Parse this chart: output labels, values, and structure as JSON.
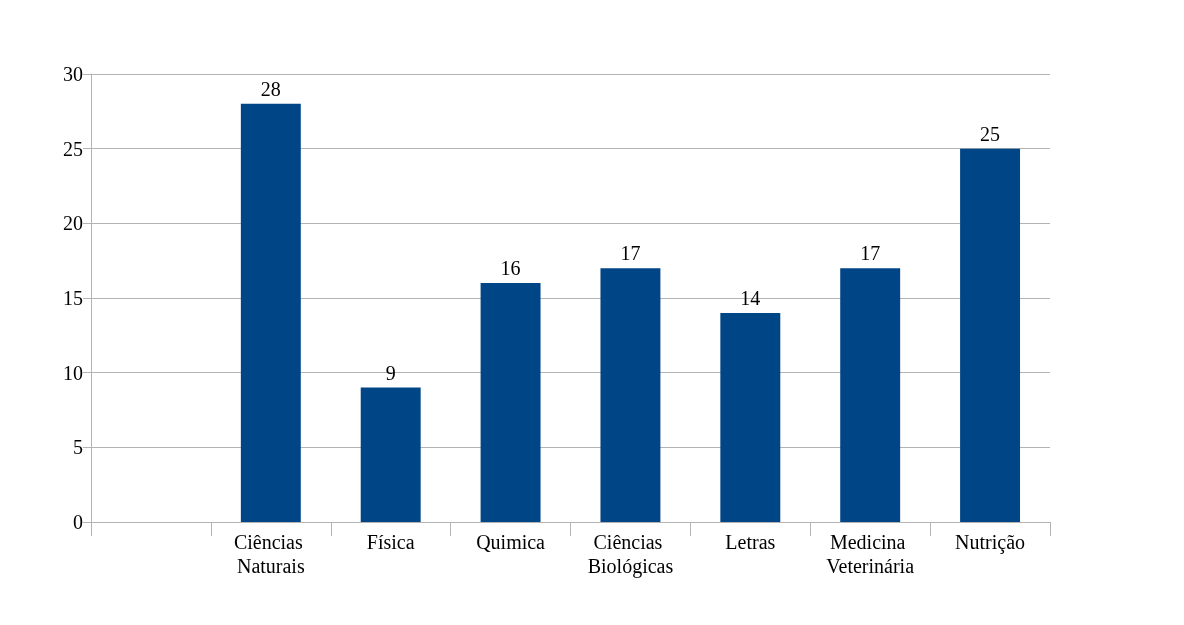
{
  "chart_data": {
    "type": "bar",
    "categories": [
      null,
      "Ciências Naturais",
      "Física",
      "Quimica",
      "Ciências Biológicas",
      "Letras",
      "Medicina Veterinária",
      "Nutrição"
    ],
    "values": [
      null,
      28,
      9,
      16,
      17,
      14,
      17,
      25
    ],
    "color": "#004586",
    "ylim": [
      0,
      30
    ],
    "yticks": [
      0,
      5,
      10,
      15,
      20,
      25,
      30
    ],
    "grid": "y",
    "data_labels": true
  }
}
